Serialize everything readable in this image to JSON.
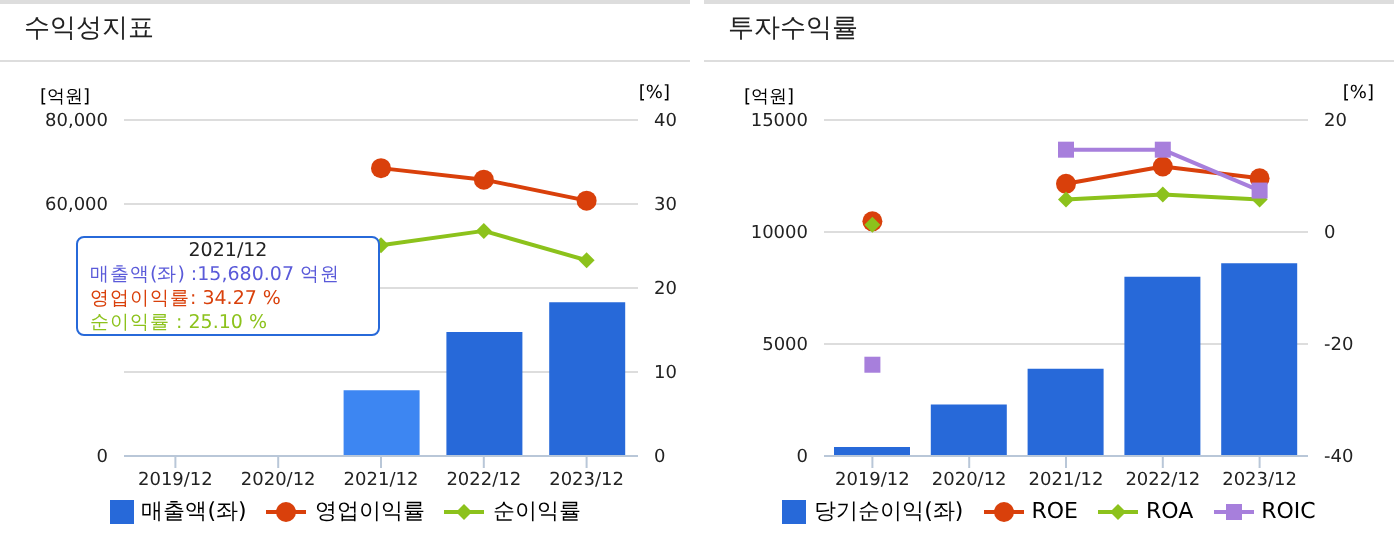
{
  "chart_data": [
    {
      "type": "bar",
      "title": "수익성지표",
      "ylabel": "[억원]",
      "y2label": "[%]",
      "categories": [
        "2019/12",
        "2020/12",
        "2021/12",
        "2022/12",
        "2023/12"
      ],
      "series": [
        {
          "name": "매출액(좌)",
          "color": "#2769d9",
          "colors": [
            "#2769d9",
            "#2769d9",
            "#3d86f2",
            "#2769d9",
            "#2769d9"
          ],
          "values": [
            null,
            null,
            15680.07,
            29500,
            36600
          ]
        },
        {
          "name": "영업이익률",
          "type": "line",
          "axis": "y2",
          "color": "#d9400b",
          "marker": "circle",
          "values": [
            null,
            null,
            34.27,
            32.9,
            30.4
          ]
        },
        {
          "name": "순이익률",
          "type": "line",
          "axis": "y2",
          "color": "#8cc21c",
          "marker": "diamond",
          "values": [
            null,
            null,
            25.1,
            26.8,
            23.3
          ]
        }
      ],
      "ylim": [
        0,
        80000
      ],
      "yticks": [
        {
          "value": 0,
          "label": "0"
        },
        {
          "value": 20000,
          "label": null
        },
        {
          "value": 40000,
          "label": null
        },
        {
          "value": 60000,
          "label": "60,000"
        },
        {
          "value": 80000,
          "label": "80,000"
        }
      ],
      "y2lim": [
        0,
        40
      ],
      "y2ticks": [
        0,
        10,
        20,
        30,
        40
      ],
      "grid": "y",
      "legend": "bottom",
      "annotations": [
        "2021/12",
        "매출액(좌) :15,680.07 억원",
        "영업이익률: 34.27 %",
        "순이익률 : 25.10 %"
      ]
    },
    {
      "type": "bar",
      "title": "투자수익률",
      "ylabel": "[억원]",
      "y2label": "[%]",
      "categories": [
        "2019/12",
        "2020/12",
        "2021/12",
        "2022/12",
        "2023/12"
      ],
      "series": [
        {
          "name": "당기순이익(좌)",
          "color": "#2769d9",
          "values": [
            400,
            2300,
            3900,
            8000,
            8600
          ]
        },
        {
          "name": "ROE",
          "type": "line",
          "axis": "y2",
          "color": "#d9400b",
          "marker": "circle",
          "values": [
            1.9,
            null,
            8.6,
            11.7,
            9.6
          ]
        },
        {
          "name": "ROA",
          "type": "line",
          "axis": "y2",
          "color": "#8cc21c",
          "marker": "diamond",
          "values": [
            1.3,
            null,
            5.8,
            6.7,
            5.8
          ]
        },
        {
          "name": "ROIC",
          "type": "line",
          "axis": "y2",
          "color": "#a77fdc",
          "marker": "square",
          "values": [
            -23.7,
            null,
            14.7,
            14.7,
            7.4
          ]
        }
      ],
      "ylim": [
        0,
        15000
      ],
      "yticks": [
        0,
        5000,
        10000,
        15000
      ],
      "y2lim": [
        -40,
        20
      ],
      "y2ticks": [
        -40,
        -20,
        0,
        20
      ],
      "grid": "y",
      "legend": "bottom"
    }
  ]
}
